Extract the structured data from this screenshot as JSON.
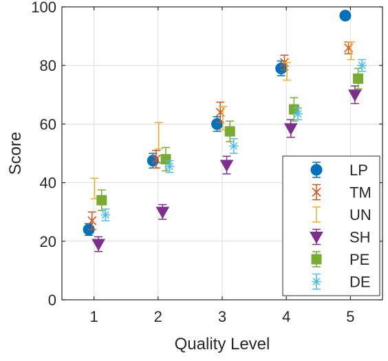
{
  "chart_data": {
    "type": "scatter",
    "xlabel": "Quality Level",
    "ylabel": "Score",
    "xlim": [
      0.5,
      5.5
    ],
    "ylim": [
      0,
      100
    ],
    "xticks": [
      "1",
      "2",
      "3",
      "4",
      "5"
    ],
    "yticks": [
      "0",
      "20",
      "40",
      "60",
      "80",
      "100"
    ],
    "grid": true,
    "error_bars": true,
    "legend_position": "bottom-right",
    "x": [
      1,
      2,
      3,
      4,
      5
    ],
    "series": [
      {
        "name": "LP",
        "color": "#0072BD",
        "marker": "circle",
        "offset": -0.08,
        "values": [
          24,
          47.5,
          60,
          79,
          97
        ],
        "err": [
          2,
          2.5,
          2.5,
          2.5,
          0
        ]
      },
      {
        "name": "TM",
        "color": "#D95319",
        "marker": "x",
        "offset": -0.03,
        "values": [
          27,
          48,
          64,
          81,
          86
        ],
        "err": [
          3,
          3,
          3.5,
          2.5,
          2
        ]
      },
      {
        "name": "UN",
        "color": "#EDB120",
        "marker": "none",
        "offset": 0.01,
        "values": [
          38,
          56,
          62,
          78,
          85
        ],
        "err": [
          3.5,
          4.5,
          4,
          3,
          3
        ]
      },
      {
        "name": "SH",
        "color": "#7E2F8E",
        "marker": "triangle-down",
        "offset": 0.07,
        "values": [
          19,
          30,
          46,
          58.5,
          70
        ],
        "err": [
          2.5,
          2.5,
          3,
          3,
          3
        ]
      },
      {
        "name": "PE",
        "color": "#77AC30",
        "marker": "square",
        "offset": 0.12,
        "values": [
          34,
          48,
          57.5,
          65,
          75.5
        ],
        "err": [
          3.5,
          4,
          3.5,
          4,
          3.5
        ]
      },
      {
        "name": "DE",
        "color": "#4DBEEE",
        "marker": "asterisk",
        "offset": 0.18,
        "values": [
          29,
          45.5,
          52.5,
          63.5,
          80
        ],
        "err": [
          2,
          2,
          2.5,
          2,
          2
        ]
      }
    ]
  }
}
